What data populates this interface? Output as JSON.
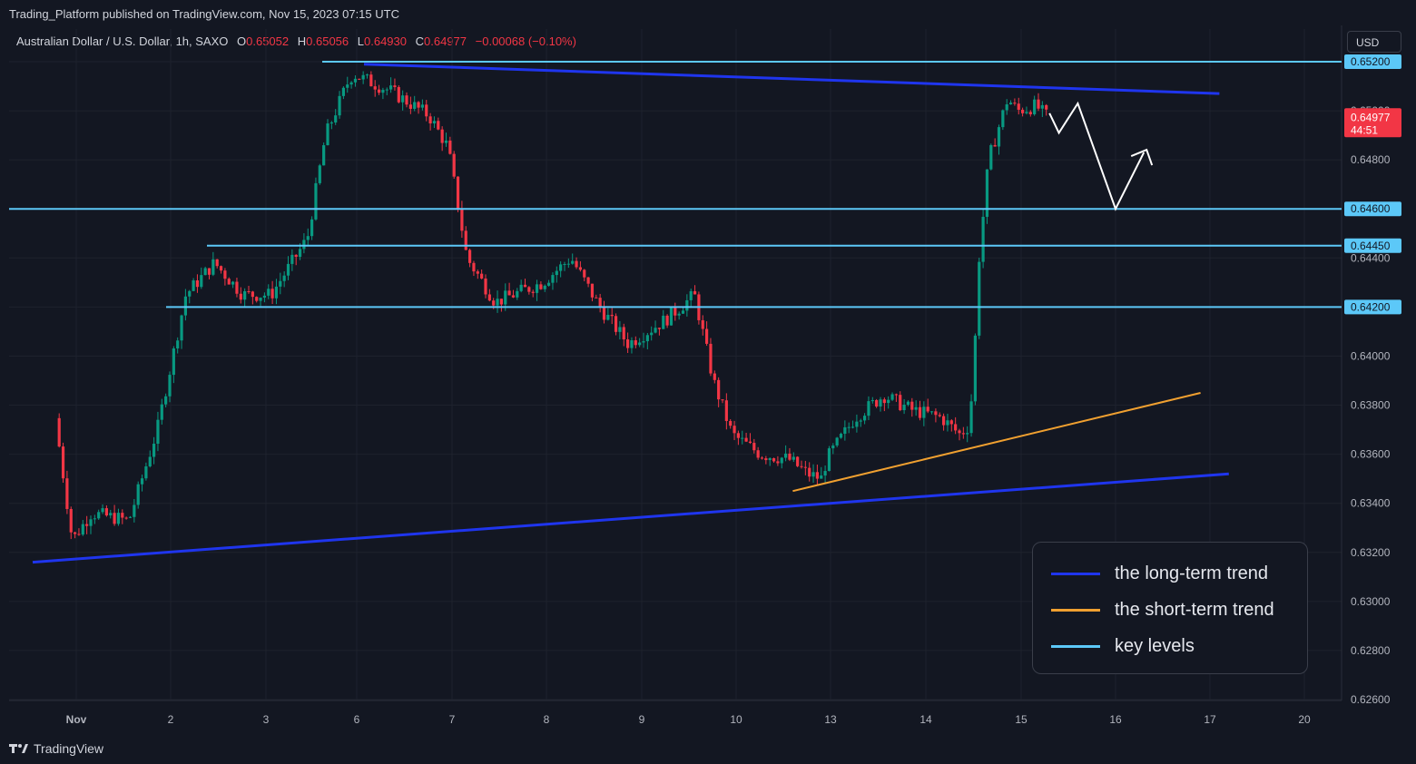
{
  "published_line": "Trading_Platform published on TradingView.com, Nov 15, 2023 07:15 UTC",
  "header": {
    "symbol": "Australian Dollar / U.S. Dollar, 1h, SAXO",
    "o_label": "O",
    "o_value": "0.65052",
    "h_label": "H",
    "h_value": "0.65056",
    "l_label": "L",
    "l_value": "0.64930",
    "c_label": "C",
    "c_value": "0.64977",
    "change": "−0.00068 (−0.10%)"
  },
  "currency_button": "USD",
  "footer": {
    "brand": "TradingView"
  },
  "colors": {
    "up": "#089981",
    "down": "#f23645",
    "long_term": "#1f35ee",
    "short_term": "#f0a030",
    "key_levels": "#5cc8f8",
    "projection": "#ffffff"
  },
  "legend": {
    "long_term": "the long-term trend",
    "short_term": "the short-term trend",
    "key_levels": "key levels"
  },
  "chart_data": {
    "type": "candlestick",
    "interval": "1h",
    "y_range": [
      0.6252,
      0.6536
    ],
    "y_ticks": [
      "0.65200",
      "0.65000",
      "0.64800",
      "0.64600",
      "0.64450",
      "0.64400",
      "0.64200",
      "0.64000",
      "0.63800",
      "0.63600",
      "0.63400",
      "0.63200",
      "0.63000",
      "0.62800",
      "0.62600"
    ],
    "x_ticks": [
      {
        "label": "Nov",
        "day": 1
      },
      {
        "label": "2",
        "day": 2
      },
      {
        "label": "3",
        "day": 3
      },
      {
        "label": "6",
        "day": 6
      },
      {
        "label": "7",
        "day": 7
      },
      {
        "label": "8",
        "day": 8
      },
      {
        "label": "9",
        "day": 9
      },
      {
        "label": "10",
        "day": 10
      },
      {
        "label": "13",
        "day": 13
      },
      {
        "label": "14",
        "day": 14
      },
      {
        "label": "15",
        "day": 15
      },
      {
        "label": "16",
        "day": 16
      },
      {
        "label": "17",
        "day": 17
      },
      {
        "label": "20",
        "day": 20
      }
    ],
    "key_levels": [
      {
        "value": 0.652,
        "label": "0.65200"
      },
      {
        "value": 0.646,
        "label": "0.64600"
      },
      {
        "value": 0.6445,
        "label": "0.64450"
      },
      {
        "value": 0.642,
        "label": "0.64200"
      }
    ],
    "last_price": {
      "value": 0.64977,
      "label": "0.64977",
      "countdown": "44:51"
    },
    "path": [
      [
        0.8,
        0.638
      ],
      [
        1.0,
        0.6325
      ],
      [
        1.2,
        0.6336
      ],
      [
        1.6,
        0.6333
      ],
      [
        1.9,
        0.637
      ],
      [
        2.2,
        0.6425
      ],
      [
        2.5,
        0.6438
      ],
      [
        2.8,
        0.6425
      ],
      [
        3.1,
        0.6425
      ],
      [
        3.5,
        0.6448
      ],
      [
        3.7,
        0.649
      ],
      [
        3.95,
        0.6512
      ],
      [
        5.6,
        0.6515
      ],
      [
        6.4,
        0.6508
      ],
      [
        6.8,
        0.6498
      ],
      [
        7.0,
        0.6485
      ],
      [
        7.2,
        0.644
      ],
      [
        7.5,
        0.6422
      ],
      [
        8.0,
        0.643
      ],
      [
        8.3,
        0.644
      ],
      [
        8.6,
        0.642
      ],
      [
        8.9,
        0.6405
      ],
      [
        9.3,
        0.6415
      ],
      [
        9.6,
        0.6425
      ],
      [
        9.8,
        0.639
      ],
      [
        10.0,
        0.6368
      ],
      [
        10.3,
        0.636
      ],
      [
        10.6,
        0.6358
      ],
      [
        10.8,
        0.6352
      ],
      [
        10.95,
        0.635
      ],
      [
        11.0,
        0.6358
      ],
      [
        13.3,
        0.6375
      ],
      [
        13.6,
        0.6384
      ],
      [
        13.9,
        0.6378
      ],
      [
        14.2,
        0.6375
      ],
      [
        14.4,
        0.6368
      ],
      [
        14.5,
        0.6372
      ],
      [
        14.55,
        0.64
      ],
      [
        14.6,
        0.644
      ],
      [
        14.7,
        0.648
      ],
      [
        14.9,
        0.6505
      ],
      [
        15.0,
        0.65
      ],
      [
        15.2,
        0.6502
      ],
      [
        15.3,
        0.6498
      ]
    ],
    "long_term_trend": {
      "upper": [
        [
          5.7,
          0.6519
        ],
        [
          17.1,
          0.6507
        ]
      ],
      "lower": [
        [
          0.5,
          0.6316
        ],
        [
          17.2,
          0.6352
        ]
      ]
    },
    "short_term_trend": [
      [
        10.6,
        0.6345
      ],
      [
        16.9,
        0.6385
      ]
    ],
    "projection": [
      [
        15.3,
        0.6499
      ],
      [
        15.4,
        0.6491
      ],
      [
        15.6,
        0.6503
      ],
      [
        16.0,
        0.646
      ],
      [
        16.3,
        0.6483
      ]
    ]
  }
}
